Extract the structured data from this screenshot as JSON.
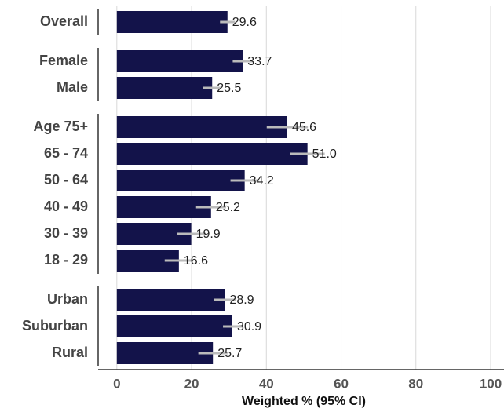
{
  "chart_data": {
    "type": "bar",
    "orientation": "horizontal",
    "categories": [
      "Overall",
      "Female",
      "Male",
      "Age 75+",
      "65 - 74",
      "50 - 64",
      "40 - 49",
      "30 - 39",
      "18 - 29",
      "Urban",
      "Suburban",
      "Rural"
    ],
    "values": [
      29.6,
      33.7,
      25.5,
      45.6,
      51.0,
      34.2,
      25.2,
      19.9,
      16.6,
      28.9,
      30.9,
      25.7
    ],
    "value_labels": [
      "29.6",
      "33.7",
      "25.5",
      "45.6",
      "51.0",
      "34.2",
      "25.2",
      "19.9",
      "16.6",
      "28.9",
      "30.9",
      "25.7"
    ],
    "errors": [
      2,
      2.7,
      2.5,
      5.5,
      4.6,
      3.8,
      4,
      3.9,
      3.8,
      2.9,
      2.5,
      3.9
    ],
    "color": "#13134a",
    "error_color": "#bbbbbb",
    "xlabel": "Weighted % (95% CI)",
    "xlim": [
      -5,
      100
    ],
    "xticks": [
      0,
      20,
      40,
      60,
      80,
      100
    ],
    "grid": true
  }
}
